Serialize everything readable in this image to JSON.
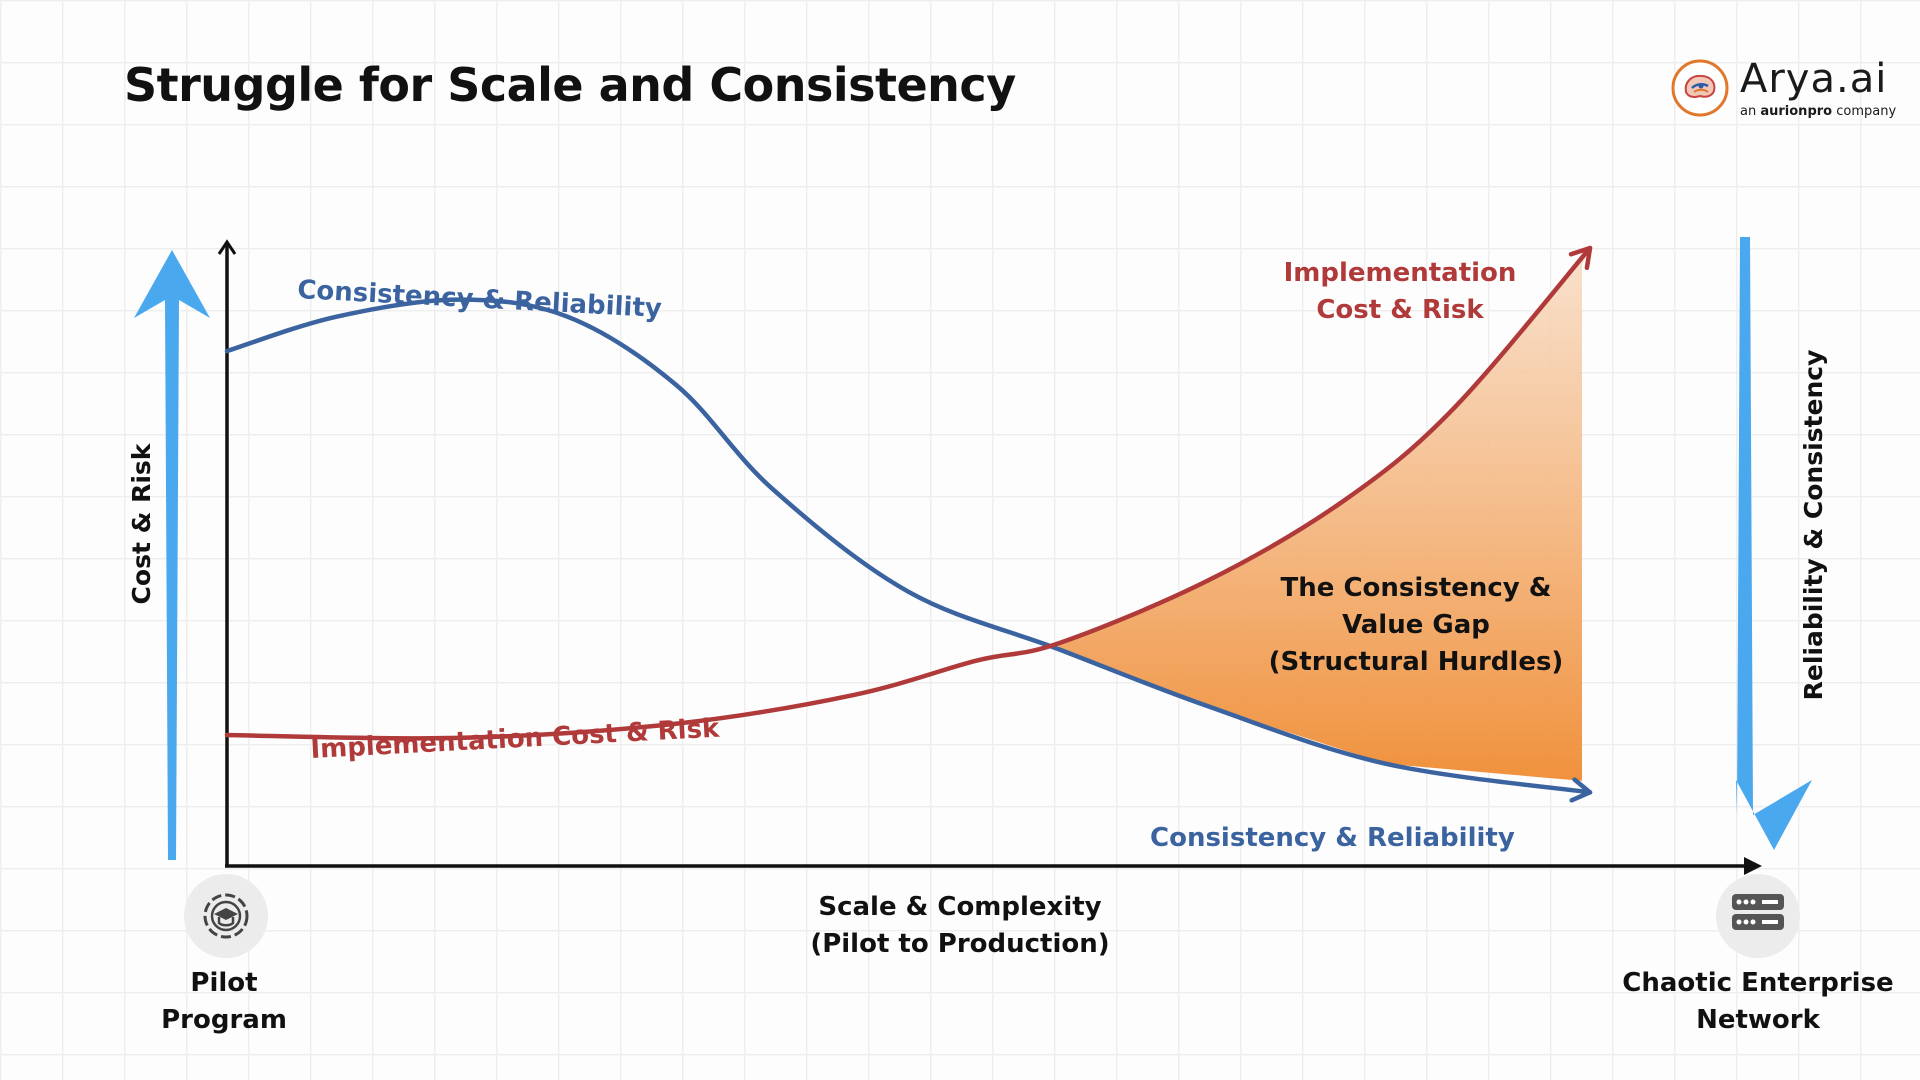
{
  "page": {
    "title": "Struggle for Scale and Consistency"
  },
  "logo": {
    "name": "Arya.ai",
    "subtitle_prefix": "an",
    "subtitle_brand": "aurionpro",
    "subtitle_suffix": "company"
  },
  "left_axis": {
    "label": "Cost & Risk",
    "icon": "pilot-program-icon",
    "endpoint_label_line1": "Pilot",
    "endpoint_label_line2": "Program"
  },
  "right_axis": {
    "label": "Reliability & Consistency",
    "icon": "server-rack-icon",
    "endpoint_label_line1": "Chaotic Enterprise",
    "endpoint_label_line2": "Network"
  },
  "colors": {
    "blue_curve": "#3a63a0",
    "red_curve": "#b03a3a",
    "arrow_blue": "#4aa8ee",
    "gap_fill_top": "#f8dcc4",
    "gap_fill_bottom": "#f0913c"
  },
  "chart_data": {
    "type": "line",
    "title": "Struggle for Scale and Consistency",
    "xlabel": "Scale & Complexity",
    "xlabel_sub": "(Pilot to Production)",
    "ylabel": "Cost & Risk",
    "ylabel_right": "Reliability & Consistency",
    "xlim": [
      0,
      100
    ],
    "ylim": [
      0,
      100
    ],
    "grid": true,
    "series": [
      {
        "name": "Consistency & Reliability",
        "label_start": "Consistency & Reliability",
        "label_end": "Consistency & Reliability",
        "color": "#3a63a0",
        "points": [
          [
            0,
            82
          ],
          [
            8,
            88
          ],
          [
            17,
            91
          ],
          [
            25,
            88
          ],
          [
            33,
            76
          ],
          [
            40,
            58
          ],
          [
            50,
            40
          ],
          [
            61,
            30
          ],
          [
            72,
            20
          ],
          [
            85,
            10
          ],
          [
            100,
            5
          ]
        ]
      },
      {
        "name": "Implementation Cost & Risk",
        "label_start": "Implementation Cost & Risk",
        "label_end_line1": "Implementation",
        "label_end_line2": "Cost & Risk",
        "color": "#b03a3a",
        "points": [
          [
            0,
            15
          ],
          [
            17,
            14.5
          ],
          [
            33,
            17
          ],
          [
            46,
            22
          ],
          [
            55,
            28
          ],
          [
            61,
            31
          ],
          [
            72,
            42
          ],
          [
            82,
            56
          ],
          [
            90,
            72
          ],
          [
            100,
            100
          ]
        ]
      }
    ],
    "annotations": [
      {
        "name": "value-gap",
        "line1": "The Consistency &",
        "line2": "Value Gap",
        "line3": "(Structural Hurdles)"
      }
    ]
  }
}
